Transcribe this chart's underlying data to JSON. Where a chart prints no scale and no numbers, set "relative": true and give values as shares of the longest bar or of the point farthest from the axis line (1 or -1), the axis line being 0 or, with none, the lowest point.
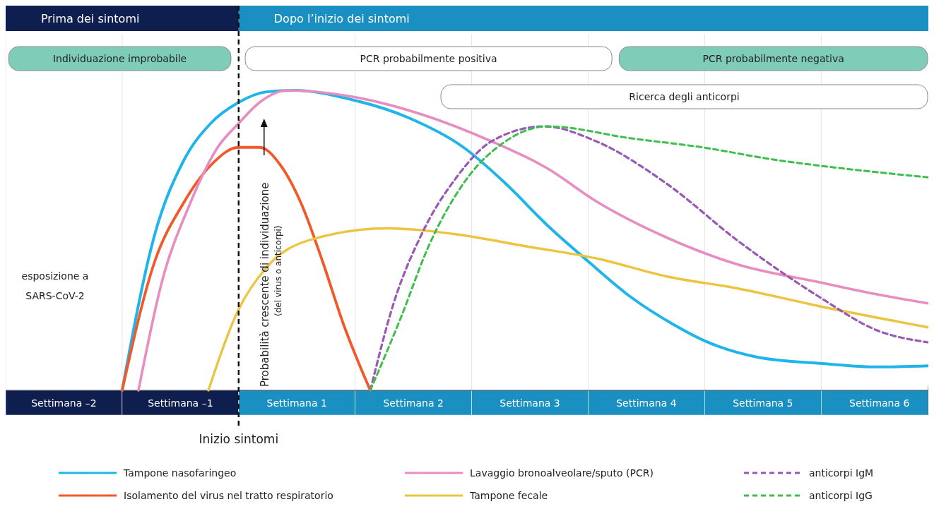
{
  "chart_data": {
    "type": "line",
    "relative": true,
    "xlim": [
      -2,
      5.92
    ],
    "xticks": [
      {
        "value": -2,
        "label": null
      },
      {
        "value": -1.5,
        "label": "Settimana –2"
      },
      {
        "value": -1,
        "label": null
      },
      {
        "value": -0.5,
        "label": "Settimana –1"
      },
      {
        "value": 0,
        "label": null
      },
      {
        "value": 0.5,
        "label": "Settimana 1"
      },
      {
        "value": 1,
        "label": null
      },
      {
        "value": 1.5,
        "label": "Settimana 2"
      },
      {
        "value": 2,
        "label": null
      },
      {
        "value": 2.5,
        "label": "Settimana 3"
      },
      {
        "value": 3,
        "label": null
      },
      {
        "value": 3.5,
        "label": "Settimana 4"
      },
      {
        "value": 4,
        "label": null
      },
      {
        "value": 4.5,
        "label": "Settimana 5"
      },
      {
        "value": 5,
        "label": null
      },
      {
        "value": 5.5,
        "label": "Settimana 6"
      }
    ],
    "grid": "x",
    "legend": "bottom",
    "series": [
      {
        "name": "Tampone nasofaringeo",
        "color": "#1fb5ea",
        "x": [
          -1.0,
          -0.72,
          -0.48,
          -0.24,
          0,
          0.24,
          0.48,
          0.96,
          1.45,
          1.93,
          2.29,
          2.65,
          3.0,
          3.37,
          3.73,
          4.0,
          4.46,
          4.99,
          5.48,
          5.92
        ],
        "values": [
          0,
          0.52,
          0.76,
          0.89,
          0.96,
          0.995,
          1.0,
          0.97,
          0.91,
          0.81,
          0.69,
          0.55,
          0.43,
          0.31,
          0.22,
          0.165,
          0.11,
          0.09,
          0.078,
          0.082
        ]
      },
      {
        "name": "Isolamento del virus nel tratto respiratorio",
        "color": "#f2592a",
        "x": [
          -1.0,
          -0.72,
          -0.48,
          -0.24,
          0,
          0.18,
          0.36,
          0.54,
          0.72,
          0.9,
          1.13
        ],
        "values": [
          0,
          0.43,
          0.62,
          0.75,
          0.81,
          0.81,
          0.75,
          0.62,
          0.43,
          0.22,
          0
        ]
      },
      {
        "name": "Lavaggio bronoalveolare/sputo (PCR)",
        "color": "#e88dc0",
        "x": [
          -0.86,
          -0.66,
          -0.42,
          -0.18,
          0,
          0.18,
          0.42,
          0.96,
          1.57,
          2.17,
          2.65,
          3.07,
          3.67,
          4.28,
          4.99,
          5.48,
          5.92
        ],
        "values": [
          0,
          0.36,
          0.62,
          0.81,
          0.89,
          0.96,
          1.0,
          0.98,
          0.92,
          0.83,
          0.74,
          0.63,
          0.51,
          0.42,
          0.36,
          0.32,
          0.29
        ]
      },
      {
        "name": "Tampone fecale",
        "color": "#ecc440",
        "x": [
          -0.26,
          0,
          0.24,
          0.6,
          1.27,
          1.87,
          2.47,
          3.07,
          3.67,
          4.28,
          4.99,
          5.92
        ],
        "values": [
          0,
          0.27,
          0.41,
          0.5,
          0.54,
          0.52,
          0.48,
          0.44,
          0.38,
          0.34,
          0.28,
          0.21
        ]
      },
      {
        "name": "anticorpi IgM",
        "color": "#9a59b5",
        "line_style": "dashed",
        "x": [
          1.13,
          1.33,
          1.57,
          1.87,
          2.17,
          2.62,
          3.07,
          3.67,
          4.28,
          4.99,
          5.48,
          5.92
        ],
        "values": [
          0,
          0.29,
          0.52,
          0.71,
          0.83,
          0.88,
          0.83,
          0.69,
          0.5,
          0.31,
          0.2,
          0.16
        ]
      },
      {
        "name": "anticorpi IgG",
        "color": "#3dbe4d",
        "line_style": "dashed",
        "x": [
          1.13,
          1.39,
          1.63,
          1.93,
          2.29,
          2.65,
          3.37,
          3.98,
          4.58,
          5.18,
          5.92
        ],
        "values": [
          0,
          0.24,
          0.48,
          0.69,
          0.83,
          0.88,
          0.84,
          0.81,
          0.77,
          0.74,
          0.71
        ]
      }
    ],
    "ref_lines": [
      {
        "axis": "x",
        "value": 0,
        "label": "Inizio sintomi",
        "color": "#111111",
        "line_style": "dashed"
      }
    ],
    "annotations": [
      "Prima dei sintomi",
      "Dopo l’inizio dei sintomi",
      "Individuazione improbabile",
      "PCR probabilmente positiva",
      "PCR probabilmente negativa",
      "Ricerca degli anticorpi",
      "esposizione a SARS-CoV-2",
      "Probabilità crescente di individuazione",
      "(del virus o anticorpi)"
    ]
  }
}
